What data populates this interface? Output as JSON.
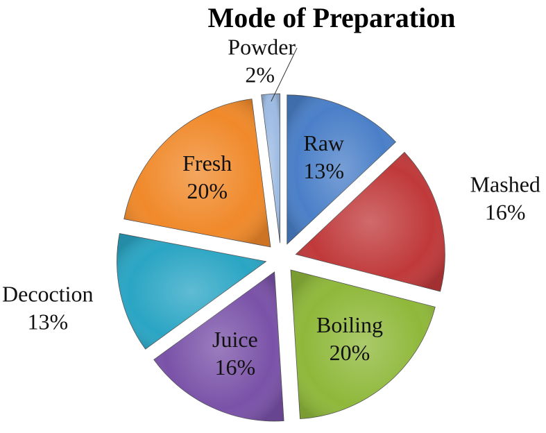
{
  "chart_data": {
    "type": "pie",
    "title": "Mode of Preparation",
    "categories": [
      "Raw",
      "Mashed",
      "Boiling",
      "Juice",
      "Decoction",
      "Fresh",
      "Powder"
    ],
    "values": [
      13,
      16,
      20,
      16,
      13,
      20,
      2
    ],
    "value_labels": [
      "13%",
      "16%",
      "20%",
      "16%",
      "13%",
      "20%",
      "2%"
    ],
    "colors": [
      "#4a7fc8",
      "#c0393a",
      "#8fb83a",
      "#7a52a8",
      "#2aa5c4",
      "#f0892a",
      "#9dbbe3"
    ]
  }
}
